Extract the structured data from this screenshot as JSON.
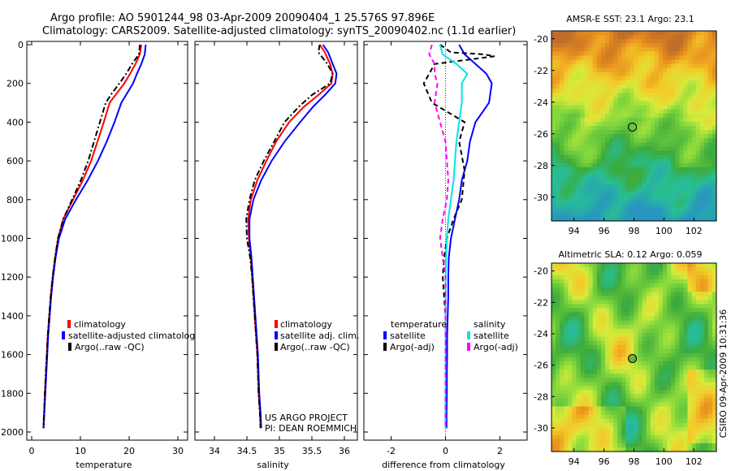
{
  "title_line1": "Argo profile: AO 5901244_98 03-Apr-2009 20090404_1 25.576S 97.896E",
  "title_line2": "Climatology: CARS2009. Satellite-adjusted climatology: synTS_20090402.nc (1.1d earlier)",
  "project_line1": "US ARGO PROJECT",
  "project_line2": "PI: DEAN ROEMMICH",
  "footer_vertical": "CSIRO 09-Apr-2009 10:31:36",
  "colors": {
    "climatology": "#ff0000",
    "satellite": "#0000ff",
    "argo": "#000000",
    "sat_salinity": "#00e5e5",
    "argo_salinity": "#ff00ff"
  },
  "chart_data": [
    {
      "type": "line",
      "id": "temperature",
      "xlabel": "temperature",
      "xlim": [
        -1,
        32
      ],
      "xticks": [
        0,
        10,
        20,
        30
      ],
      "ylim": [
        2000,
        0
      ],
      "yticks": [
        0,
        200,
        400,
        600,
        800,
        1000,
        1200,
        1400,
        1600,
        1800,
        2000
      ],
      "legend": [
        "climatology",
        "satellite-adjusted climatolog",
        "Argo(..raw -QC)"
      ],
      "series": [
        {
          "name": "climatology",
          "color": "#ff0000",
          "style": "solid",
          "points": [
            [
              22.5,
              0
            ],
            [
              22.2,
              50
            ],
            [
              21.3,
              100
            ],
            [
              20.2,
              150
            ],
            [
              19,
              200
            ],
            [
              17.5,
              250
            ],
            [
              16,
              300
            ],
            [
              14.8,
              400
            ],
            [
              13.5,
              500
            ],
            [
              12.2,
              600
            ],
            [
              10.5,
              700
            ],
            [
              8.5,
              800
            ],
            [
              6.5,
              900
            ],
            [
              5.4,
              1000
            ],
            [
              4.8,
              1100
            ],
            [
              4.3,
              1200
            ],
            [
              3.9,
              1300
            ],
            [
              3.6,
              1400
            ],
            [
              3.3,
              1500
            ],
            [
              3.1,
              1600
            ],
            [
              2.9,
              1700
            ],
            [
              2.7,
              1800
            ],
            [
              2.55,
              1900
            ],
            [
              2.4,
              1980
            ]
          ]
        },
        {
          "name": "satellite-adjusted climatology",
          "color": "#0000ff",
          "style": "solid",
          "points": [
            [
              23.4,
              0
            ],
            [
              23.2,
              50
            ],
            [
              22.5,
              100
            ],
            [
              21.6,
              150
            ],
            [
              20.8,
              200
            ],
            [
              19.6,
              250
            ],
            [
              18.4,
              300
            ],
            [
              17,
              400
            ],
            [
              15.4,
              500
            ],
            [
              13.6,
              600
            ],
            [
              11.5,
              700
            ],
            [
              9.1,
              800
            ],
            [
              6.9,
              900
            ],
            [
              5.6,
              1000
            ],
            [
              4.9,
              1100
            ],
            [
              4.4,
              1200
            ],
            [
              4,
              1300
            ],
            [
              3.7,
              1400
            ],
            [
              3.4,
              1500
            ],
            [
              3.2,
              1600
            ],
            [
              3,
              1700
            ],
            [
              2.8,
              1800
            ],
            [
              2.6,
              1900
            ],
            [
              2.45,
              1980
            ]
          ]
        },
        {
          "name": "Argo(..raw -QC)",
          "color": "#000000",
          "style": "dashdot",
          "points": [
            [
              22.2,
              0
            ],
            [
              22,
              50
            ],
            [
              20.6,
              100
            ],
            [
              19.4,
              150
            ],
            [
              18,
              200
            ],
            [
              16.5,
              250
            ],
            [
              15.2,
              300
            ],
            [
              14,
              400
            ],
            [
              12.8,
              500
            ],
            [
              11.6,
              600
            ],
            [
              10.1,
              700
            ],
            [
              8.3,
              800
            ],
            [
              6.5,
              900
            ],
            [
              5.4,
              1000
            ],
            [
              4.8,
              1100
            ],
            [
              4.3,
              1200
            ],
            [
              3.9,
              1300
            ],
            [
              3.6,
              1400
            ],
            [
              3.3,
              1500
            ],
            [
              3.1,
              1600
            ],
            [
              2.9,
              1700
            ],
            [
              2.7,
              1800
            ],
            [
              2.55,
              1900
            ],
            [
              2.4,
              1980
            ]
          ]
        }
      ]
    },
    {
      "type": "line",
      "id": "salinity",
      "xlabel": "salinity",
      "xlim": [
        33.7,
        36.2
      ],
      "xticks": [
        34,
        34.5,
        35,
        35.5,
        36
      ],
      "ylim": [
        2000,
        0
      ],
      "legend": [
        "climatology",
        "satellite adj. clim.",
        "Argo(..raw -QC)"
      ],
      "series": [
        {
          "name": "climatology",
          "color": "#ff0000",
          "style": "solid",
          "points": [
            [
              35.62,
              0
            ],
            [
              35.7,
              40
            ],
            [
              35.78,
              100
            ],
            [
              35.82,
              150
            ],
            [
              35.8,
              200
            ],
            [
              35.6,
              260
            ],
            [
              35.38,
              320
            ],
            [
              35.15,
              400
            ],
            [
              34.95,
              500
            ],
            [
              34.8,
              600
            ],
            [
              34.66,
              700
            ],
            [
              34.56,
              800
            ],
            [
              34.52,
              900
            ],
            [
              34.53,
              1000
            ],
            [
              34.56,
              1100
            ],
            [
              34.58,
              1200
            ],
            [
              34.6,
              1300
            ],
            [
              34.62,
              1400
            ],
            [
              34.64,
              1500
            ],
            [
              34.66,
              1600
            ],
            [
              34.67,
              1700
            ],
            [
              34.68,
              1800
            ],
            [
              34.7,
              1900
            ],
            [
              34.71,
              1980
            ]
          ]
        },
        {
          "name": "satellite adj. clim.",
          "color": "#0000ff",
          "style": "solid",
          "points": [
            [
              35.67,
              0
            ],
            [
              35.75,
              40
            ],
            [
              35.82,
              100
            ],
            [
              35.88,
              150
            ],
            [
              35.86,
              200
            ],
            [
              35.7,
              260
            ],
            [
              35.52,
              320
            ],
            [
              35.32,
              400
            ],
            [
              35.08,
              500
            ],
            [
              34.88,
              600
            ],
            [
              34.72,
              700
            ],
            [
              34.6,
              800
            ],
            [
              34.54,
              900
            ],
            [
              34.54,
              1000
            ],
            [
              34.57,
              1100
            ],
            [
              34.59,
              1200
            ],
            [
              34.61,
              1300
            ],
            [
              34.63,
              1400
            ],
            [
              34.65,
              1500
            ],
            [
              34.67,
              1600
            ],
            [
              34.68,
              1700
            ],
            [
              34.69,
              1800
            ],
            [
              34.71,
              1900
            ],
            [
              34.72,
              1980
            ]
          ]
        },
        {
          "name": "Argo(..raw -QC)",
          "color": "#000000",
          "style": "dashdot",
          "points": [
            [
              35.62,
              0
            ],
            [
              35.6,
              40
            ],
            [
              35.74,
              100
            ],
            [
              35.82,
              150
            ],
            [
              35.78,
              200
            ],
            [
              35.5,
              260
            ],
            [
              35.3,
              320
            ],
            [
              35.08,
              400
            ],
            [
              34.92,
              500
            ],
            [
              34.76,
              600
            ],
            [
              34.62,
              700
            ],
            [
              34.54,
              800
            ],
            [
              34.49,
              900
            ],
            [
              34.5,
              1000
            ],
            [
              34.55,
              1100
            ],
            [
              34.58,
              1200
            ],
            [
              34.6,
              1300
            ],
            [
              34.62,
              1400
            ],
            [
              34.64,
              1500
            ],
            [
              34.66,
              1600
            ],
            [
              34.67,
              1700
            ],
            [
              34.68,
              1800
            ],
            [
              34.7,
              1900
            ],
            [
              34.71,
              1980
            ]
          ]
        }
      ]
    },
    {
      "type": "line",
      "id": "difference",
      "xlabel": "difference from climatology",
      "xlim": [
        -3,
        3
      ],
      "xticks": [
        -2,
        0,
        2
      ],
      "ylim": [
        2000,
        0
      ],
      "legend_titles": [
        "temperature",
        "salinity"
      ],
      "legend": [
        "satellite",
        "Argo(-adj)",
        "satellite",
        "Argo(-adj)"
      ],
      "series": [
        {
          "name": "temperature satellite",
          "color": "#0000ff",
          "style": "solid",
          "points": [
            [
              0.5,
              0
            ],
            [
              0.7,
              50
            ],
            [
              1.1,
              100
            ],
            [
              1.5,
              150
            ],
            [
              1.7,
              200
            ],
            [
              1.6,
              300
            ],
            [
              1.1,
              400
            ],
            [
              0.9,
              500
            ],
            [
              0.8,
              600
            ],
            [
              0.6,
              700
            ],
            [
              0.5,
              800
            ],
            [
              0.35,
              900
            ],
            [
              0.2,
              1000
            ],
            [
              0.12,
              1100
            ],
            [
              0.1,
              1200
            ],
            [
              0.1,
              1300
            ],
            [
              0.08,
              1400
            ],
            [
              0.06,
              1500
            ],
            [
              0.06,
              1600
            ],
            [
              0.05,
              1700
            ],
            [
              0.05,
              1800
            ],
            [
              0.04,
              1900
            ],
            [
              0.04,
              1980
            ]
          ]
        },
        {
          "name": "temperature Argo(-adj)",
          "color": "#000000",
          "style": "dashed",
          "points": [
            [
              -0.2,
              0
            ],
            [
              0.2,
              40
            ],
            [
              1.4,
              50
            ],
            [
              1.8,
              60
            ],
            [
              -0.4,
              100
            ],
            [
              -0.6,
              150
            ],
            [
              -0.8,
              200
            ],
            [
              -0.5,
              300
            ],
            [
              0.7,
              400
            ],
            [
              0.5,
              500
            ],
            [
              0.7,
              650
            ],
            [
              0.6,
              800
            ],
            [
              0.3,
              900
            ],
            [
              0.05,
              1000
            ],
            [
              -0.05,
              1100
            ],
            [
              -0.1,
              1200
            ],
            [
              -0.05,
              1300
            ],
            [
              0,
              1400
            ],
            [
              0,
              1600
            ],
            [
              0,
              1800
            ],
            [
              0,
              1980
            ]
          ]
        },
        {
          "name": "salinity satellite",
          "color": "#00e5e5",
          "style": "solid",
          "points": [
            [
              -0.2,
              0
            ],
            [
              -0.1,
              50
            ],
            [
              0.4,
              100
            ],
            [
              0.8,
              150
            ],
            [
              0.6,
              200
            ],
            [
              0.6,
              300
            ],
            [
              0.5,
              400
            ],
            [
              0.4,
              500
            ],
            [
              0.35,
              600
            ],
            [
              0.3,
              700
            ],
            [
              0.2,
              800
            ],
            [
              0.1,
              900
            ],
            [
              0.05,
              1000
            ],
            [
              0.02,
              1100
            ],
            [
              0.01,
              1200
            ],
            [
              0,
              1400
            ],
            [
              0,
              1600
            ],
            [
              0,
              1800
            ],
            [
              0,
              1980
            ]
          ]
        },
        {
          "name": "salinity Argo(-adj)",
          "color": "#ff00ff",
          "style": "dashed",
          "points": [
            [
              -0.5,
              0
            ],
            [
              -0.6,
              50
            ],
            [
              -0.4,
              100
            ],
            [
              -0.4,
              150
            ],
            [
              -0.3,
              200
            ],
            [
              -0.4,
              300
            ],
            [
              -0.2,
              400
            ],
            [
              0,
              500
            ],
            [
              0.05,
              600
            ],
            [
              0.1,
              700
            ],
            [
              0.05,
              800
            ],
            [
              -0.1,
              900
            ],
            [
              -0.2,
              1000
            ],
            [
              -0.1,
              1100
            ],
            [
              0,
              1200
            ],
            [
              0,
              1400
            ],
            [
              0,
              1600
            ],
            [
              0,
              1800
            ],
            [
              0,
              1980
            ]
          ]
        }
      ]
    },
    {
      "type": "heatmap",
      "id": "sst_map",
      "title": "AMSR-E SST: 23.1 Argo: 23.1",
      "xlim": [
        92.5,
        103.5
      ],
      "ylim": [
        -31.5,
        -19.5
      ],
      "xticks": [
        94,
        96,
        98,
        100,
        102
      ],
      "yticks": [
        -20,
        -22,
        -24,
        -26,
        -28,
        -30
      ],
      "marker": [
        97.896,
        -25.576
      ]
    },
    {
      "type": "heatmap",
      "id": "sla_map",
      "title": "Altimetric SLA: 0.12 Argo: 0.059",
      "xlim": [
        92.5,
        103.5
      ],
      "ylim": [
        -31.5,
        -19.5
      ],
      "xticks": [
        94,
        96,
        98,
        100,
        102
      ],
      "yticks": [
        -20,
        -22,
        -24,
        -26,
        -28,
        -30
      ],
      "marker": [
        97.896,
        -25.576
      ]
    }
  ]
}
